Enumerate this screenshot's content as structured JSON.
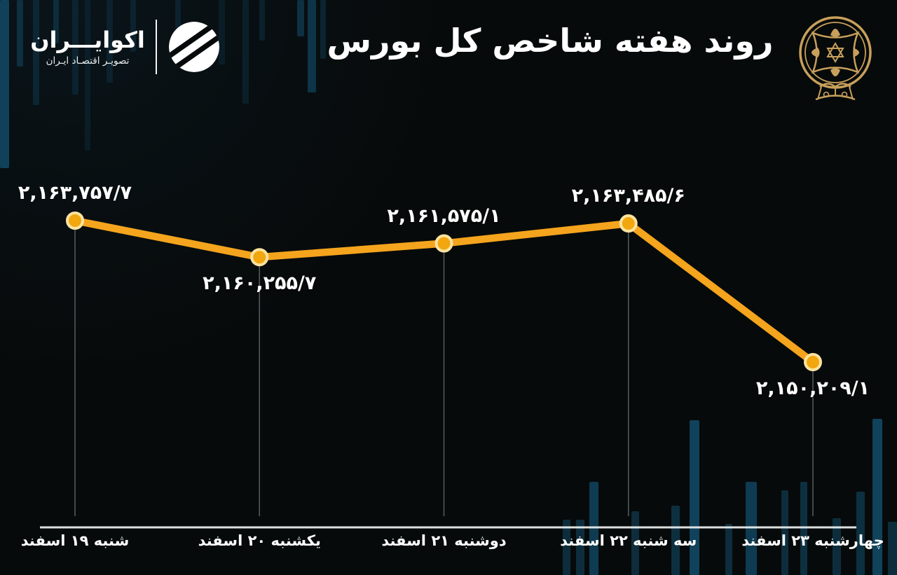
{
  "brand": {
    "name": "اکوایـــران",
    "tagline": "تصویـر اقتصـاد ایـران",
    "logo_icon": "ecoiran-swoosh-circle"
  },
  "header": {
    "title": "روند هفته شاخص کل بورس",
    "emblem_icon": "tehran-stock-exchange-emblem"
  },
  "colors": {
    "background": "#070A0A",
    "line": "#F5A41D",
    "marker_fill": "#F2A70E",
    "marker_ring": "#FBE3A0",
    "axis": "#E8ECEB",
    "drop_line": "#98A0A0",
    "text": "#FFFFFF",
    "emblem_gold": "#C8A05C",
    "background_bar": "#135070"
  },
  "chart_data": {
    "type": "line",
    "title": "روند هفته شاخص کل بورس",
    "categories": [
      "شنبه ۱۹ اسفند",
      "یکشنبه ۲۰ اسفند",
      "دوشنبه ۲۱ اسفند",
      "سه شنبه ۲۲ اسفند",
      "چهارشنبه ۲۳ اسفند"
    ],
    "values": [
      2163757.7,
      2160255.7,
      2161575.1,
      2163485.6,
      2150209.1
    ],
    "value_labels": [
      "۲,۱۶۳,۷۵۷/۷",
      "۲,۱۶۰,۲۵۵/۷",
      "۲,۱۶۱,۵۷۵/۱",
      "۲,۱۶۳,۴۸۵/۶",
      "۲,۱۵۰,۲۰۹/۱"
    ],
    "label_side": [
      "above",
      "below",
      "above",
      "above",
      "below"
    ],
    "xlabel": "",
    "ylabel": "",
    "ylim": [
      2150209.1,
      2163757.7
    ],
    "grid": false,
    "legend": false
  }
}
